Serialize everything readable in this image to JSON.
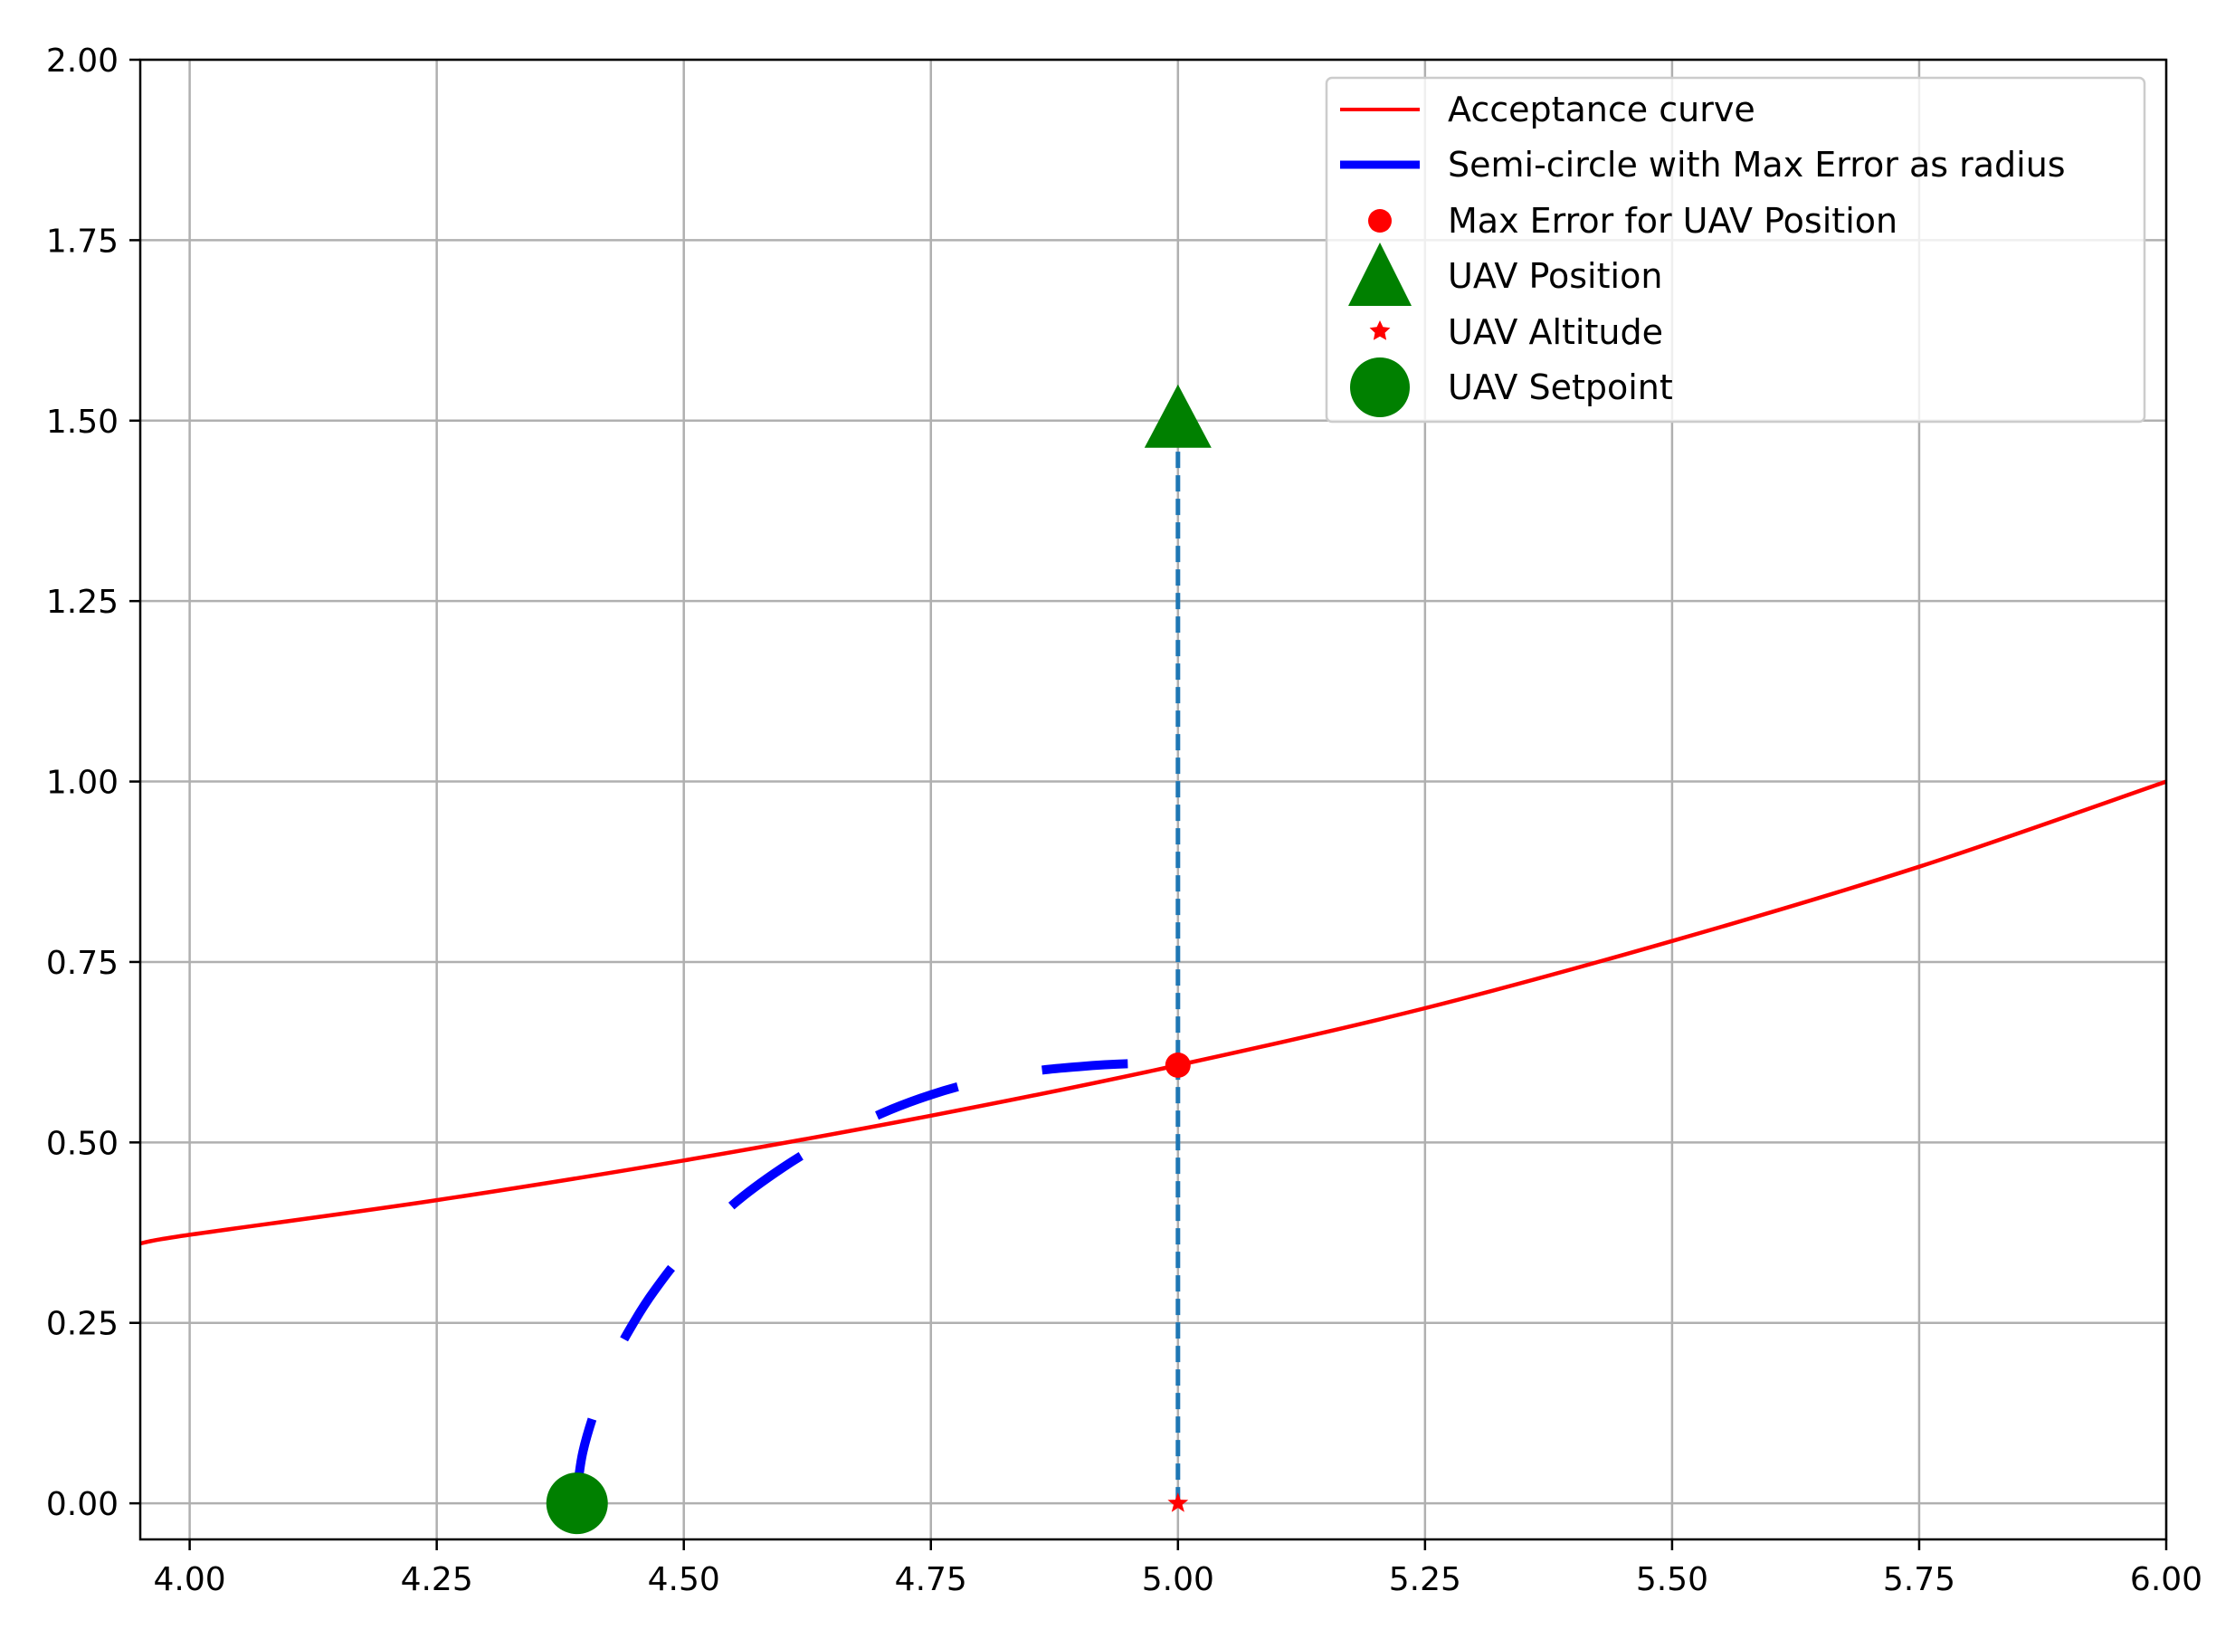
{
  "chart_data": {
    "type": "line",
    "title": "",
    "xlabel": "",
    "ylabel": "",
    "xlim": [
      3.95,
      6.0
    ],
    "ylim": [
      -0.05,
      2.0
    ],
    "grid": true,
    "legend_position": "top-right",
    "x_ticks": [
      "4.00",
      "4.25",
      "4.50",
      "4.75",
      "5.00",
      "5.25",
      "5.50",
      "5.75",
      "6.00"
    ],
    "y_ticks": [
      "0.00",
      "0.25",
      "0.50",
      "0.75",
      "1.00",
      "1.25",
      "1.50",
      "1.75",
      "2.00"
    ],
    "series": [
      {
        "name": "Acceptance curve",
        "kind": "line",
        "color": "#ff0000",
        "x": [
          3.95,
          4.0,
          4.25,
          4.5,
          4.75,
          5.0,
          5.25,
          5.5,
          5.75,
          6.0
        ],
        "y": [
          0.36,
          0.372,
          0.42,
          0.475,
          0.537,
          0.607,
          0.686,
          0.779,
          0.882,
          1.0
        ]
      },
      {
        "name": "Semi-circle with Max Error as radius",
        "kind": "dashed-line",
        "color": "#0000ff",
        "x": [
          4.392,
          4.393,
          4.398,
          4.41,
          4.43,
          4.45,
          4.47,
          4.5,
          4.55,
          4.6,
          4.65,
          4.7,
          4.75,
          4.8,
          4.85,
          4.9,
          4.95,
          4.98,
          5.0
        ],
        "y": [
          0.0,
          0.027,
          0.072,
          0.128,
          0.201,
          0.252,
          0.294,
          0.346,
          0.414,
          0.465,
          0.506,
          0.54,
          0.566,
          0.585,
          0.598,
          0.605,
          0.609,
          0.608,
          0.607
        ]
      },
      {
        "name": "Max Error for UAV Position",
        "kind": "point",
        "marker": "circle",
        "color": "#ff0000",
        "x": [
          5.0
        ],
        "y": [
          0.607
        ]
      },
      {
        "name": "UAV Position",
        "kind": "point",
        "marker": "triangle",
        "color": "#008000",
        "x": [
          5.0
        ],
        "y": [
          1.5
        ]
      },
      {
        "name": "UAV Altitude",
        "kind": "point",
        "marker": "star",
        "color": "#ff0000",
        "x": [
          5.0
        ],
        "y": [
          0.0
        ]
      },
      {
        "name": "UAV Setpoint",
        "kind": "point",
        "marker": "big-circle",
        "color": "#008000",
        "x": [
          4.392
        ],
        "y": [
          0.0
        ]
      }
    ],
    "vertical_line": {
      "color": "#1f77b4",
      "x": 5.0,
      "y_from": 0.0,
      "y_to": 1.5
    }
  }
}
